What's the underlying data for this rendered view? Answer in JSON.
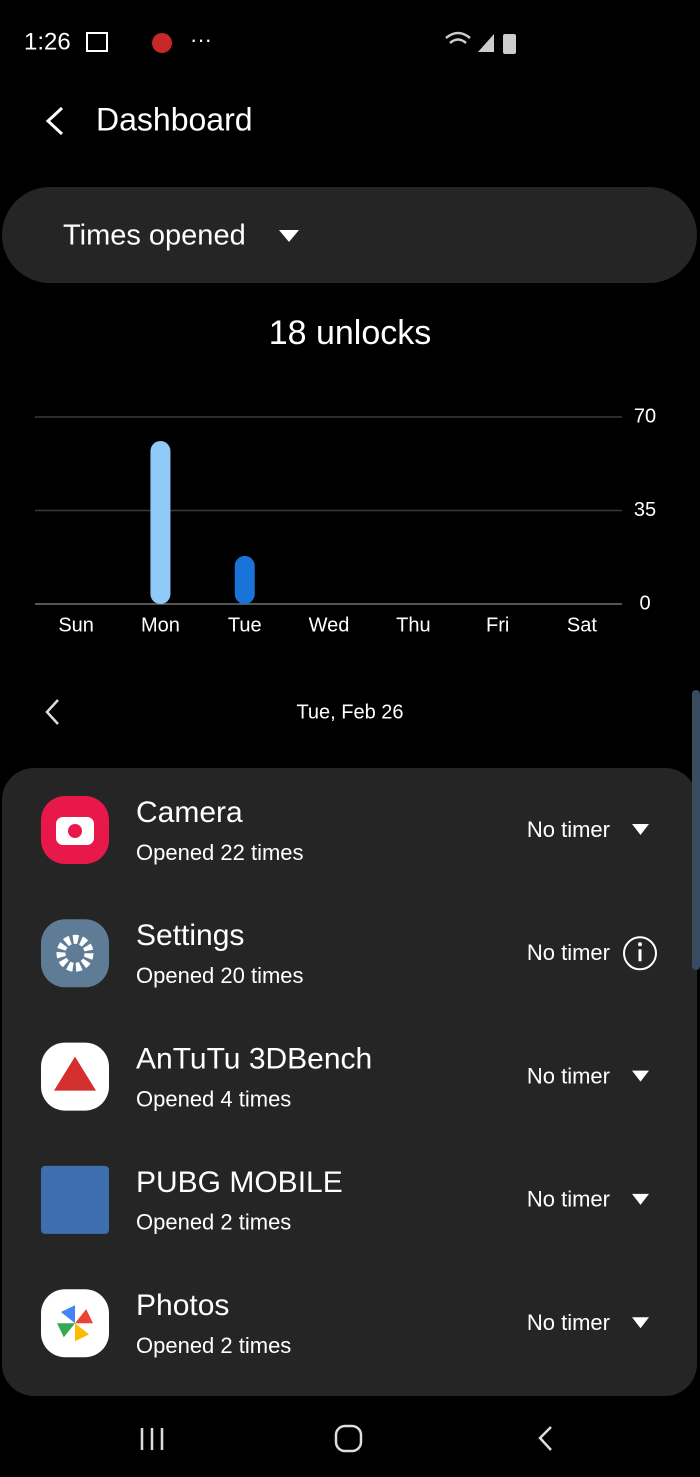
{
  "status_bar": {
    "time": "1:26",
    "more": "···"
  },
  "header": {
    "title": "Dashboard"
  },
  "selector": {
    "label": "Times opened"
  },
  "chart_data": {
    "type": "bar",
    "title": "18 unlocks",
    "categories": [
      "Sun",
      "Mon",
      "Tue",
      "Wed",
      "Thu",
      "Fri",
      "Sat"
    ],
    "values": [
      0,
      61,
      18,
      null,
      null,
      null,
      null
    ],
    "colors": [
      "#90caf9",
      "#90caf9",
      "#1a73d9",
      "#90caf9",
      "#90caf9",
      "#90caf9",
      "#90caf9"
    ],
    "ylim": [
      0,
      70
    ],
    "yticks": [
      0,
      35,
      70
    ],
    "grid": true
  },
  "date_nav": {
    "label": "Tue, Feb 26"
  },
  "apps": [
    {
      "name": "Camera",
      "detail": "Opened 22 times",
      "timer": "No timer"
    },
    {
      "name": "Settings",
      "detail": "Opened 20 times",
      "timer": "No timer"
    },
    {
      "name": "AnTuTu 3DBench",
      "detail": "Opened 4 times",
      "timer": "No timer"
    },
    {
      "name": "PUBG MOBILE",
      "detail": "Opened 2 times",
      "timer": "No timer"
    },
    {
      "name": "Photos",
      "detail": "Opened 2 times",
      "timer": "No timer"
    }
  ]
}
